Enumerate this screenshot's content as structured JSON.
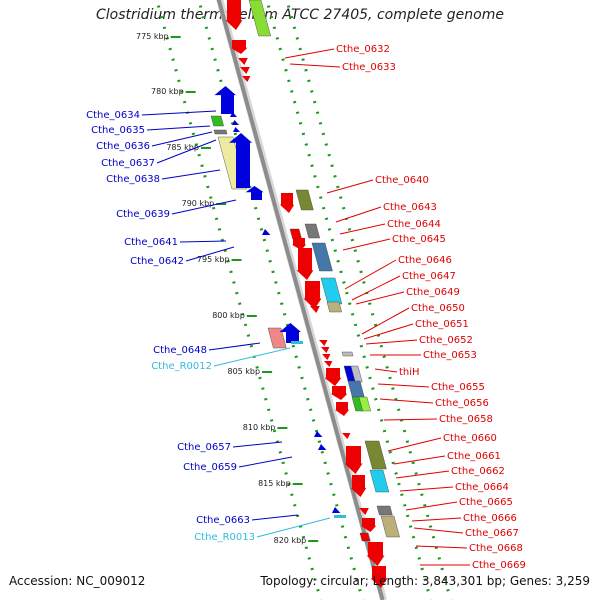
{
  "title": "Clostridium thermocellum ATCC 27405, complete genome",
  "accession": "Accession: NC_009012",
  "topology": "Topology: circular; Length: 3,843,301 bp; Genes: 3,259",
  "colors": {
    "backbone": "#8c8c8c",
    "dots": "#1a9a1a",
    "forward_label": "#e00000",
    "reverse_label": "#0000c8",
    "rna_label": "#33bbdd",
    "forward_gene": "#ee0000",
    "reverse_gene": "#0000dd"
  },
  "ticks": [
    {
      "label": "775 kbp"
    },
    {
      "label": "780 kbp"
    },
    {
      "label": "785 kbp"
    },
    {
      "label": "790 kbp"
    },
    {
      "label": "795 kbp"
    },
    {
      "label": "800 kbp"
    },
    {
      "label": "805 kbp"
    },
    {
      "label": "810 kbp"
    },
    {
      "label": "815 kbp"
    },
    {
      "label": "820 kbp"
    }
  ],
  "left_labels": [
    {
      "text": "Cthe_0634",
      "kind": "reverse"
    },
    {
      "text": "Cthe_0635",
      "kind": "reverse"
    },
    {
      "text": "Cthe_0636",
      "kind": "reverse"
    },
    {
      "text": "Cthe_0637",
      "kind": "reverse"
    },
    {
      "text": "Cthe_0638",
      "kind": "reverse"
    },
    {
      "text": "Cthe_0639",
      "kind": "reverse"
    },
    {
      "text": "Cthe_0641",
      "kind": "reverse"
    },
    {
      "text": "Cthe_0642",
      "kind": "reverse"
    },
    {
      "text": "Cthe_0648",
      "kind": "reverse"
    },
    {
      "text": "Cthe_R0012",
      "kind": "rna"
    },
    {
      "text": "Cthe_0657",
      "kind": "reverse"
    },
    {
      "text": "Cthe_0659",
      "kind": "reverse"
    },
    {
      "text": "Cthe_0663",
      "kind": "reverse"
    },
    {
      "text": "Cthe_R0013",
      "kind": "rna"
    }
  ],
  "right_labels": [
    {
      "text": "Cthe_0632"
    },
    {
      "text": "Cthe_0633"
    },
    {
      "text": "Cthe_0640"
    },
    {
      "text": "Cthe_0643"
    },
    {
      "text": "Cthe_0644"
    },
    {
      "text": "Cthe_0645"
    },
    {
      "text": "Cthe_0646"
    },
    {
      "text": "Cthe_0647"
    },
    {
      "text": "Cthe_0649"
    },
    {
      "text": "Cthe_0650"
    },
    {
      "text": "Cthe_0651"
    },
    {
      "text": "Cthe_0652"
    },
    {
      "text": "Cthe_0653"
    },
    {
      "text": "thiH"
    },
    {
      "text": "Cthe_0655"
    },
    {
      "text": "Cthe_0656"
    },
    {
      "text": "Cthe_0658"
    },
    {
      "text": "Cthe_0660"
    },
    {
      "text": "Cthe_0661"
    },
    {
      "text": "Cthe_0662"
    },
    {
      "text": "Cthe_0664"
    },
    {
      "text": "Cthe_0665"
    },
    {
      "text": "Cthe_0666"
    },
    {
      "text": "Cthe_0667"
    },
    {
      "text": "Cthe_0668"
    },
    {
      "text": "Cthe_0669"
    }
  ]
}
